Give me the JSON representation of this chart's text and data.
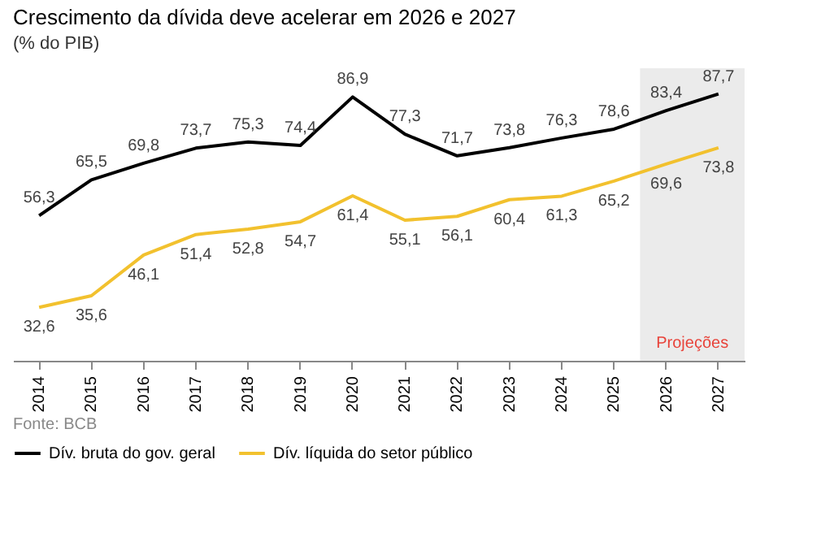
{
  "chart_data": {
    "type": "line",
    "title": "Crescimento da dívida deve acelerar em 2026 e 2027",
    "subtitle": "(% do PIB)",
    "categories": [
      "2014",
      "2015",
      "2016",
      "2017",
      "2018",
      "2019",
      "2020",
      "2021",
      "2022",
      "2023",
      "2024",
      "2025",
      "2026",
      "2027"
    ],
    "series": [
      {
        "name": "Dív. bruta do gov. geral",
        "color": "#000000",
        "values": [
          56.3,
          65.5,
          69.8,
          73.7,
          75.3,
          74.4,
          86.9,
          77.3,
          71.7,
          73.8,
          76.3,
          78.6,
          83.4,
          87.7
        ],
        "value_labels": [
          "56,3",
          "65,5",
          "69,8",
          "73,7",
          "75,3",
          "74,4",
          "86,9",
          "77,3",
          "71,7",
          "73,8",
          "76,3",
          "78,6",
          "83,4",
          "87,7"
        ]
      },
      {
        "name": "Dív. líquida do setor público",
        "color": "#f2c12e",
        "values": [
          32.6,
          35.6,
          46.1,
          51.4,
          52.8,
          54.7,
          61.4,
          55.1,
          56.1,
          60.4,
          61.3,
          65.2,
          69.6,
          73.8
        ],
        "value_labels": [
          "32,6",
          "35,6",
          "46,1",
          "51,4",
          "52,8",
          "54,7",
          "61,4",
          "55,1",
          "56,1",
          "60,4",
          "61,3",
          "65,2",
          "69,6",
          "73,8"
        ]
      }
    ],
    "bands": [
      {
        "axis": "x",
        "from": "2026",
        "to": "2027",
        "label": "Projeções",
        "color": "#ebebeb"
      }
    ],
    "annotations": [
      "Fonte: BCB"
    ],
    "legend": "bottom",
    "grid": false,
    "marker": "none",
    "line_style": "solid"
  }
}
